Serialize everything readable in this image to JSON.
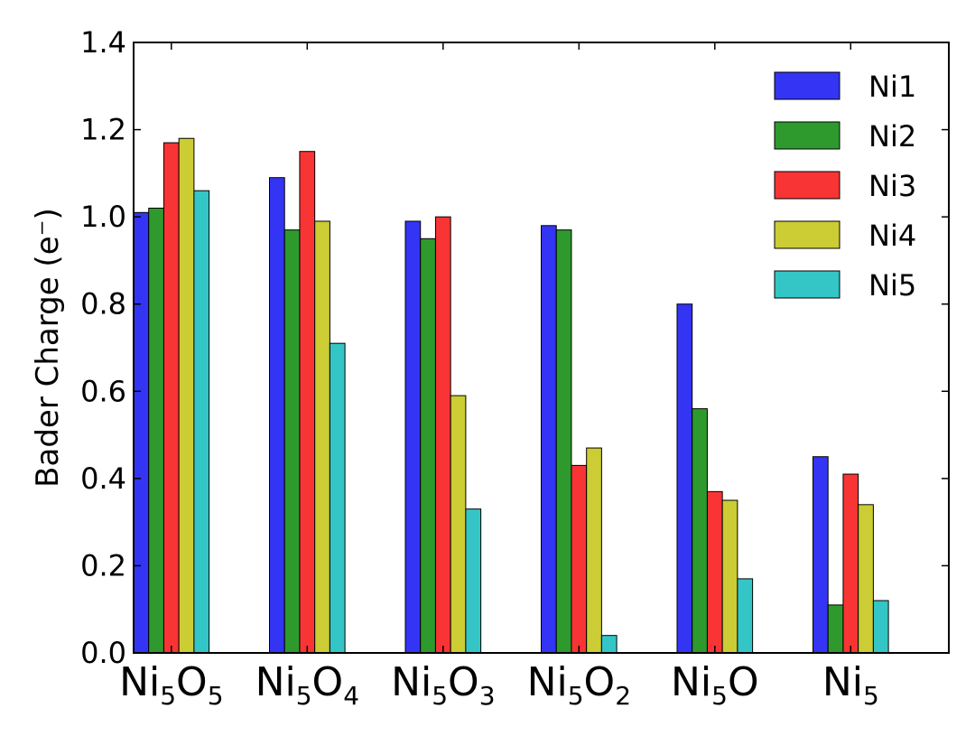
{
  "chart_data": {
    "type": "bar",
    "ylabel": "Bader Charge (e⁻)",
    "ylim": [
      0,
      1.4
    ],
    "yticks": [
      "0.0",
      "0.2",
      "0.4",
      "0.6",
      "0.8",
      "1.0",
      "1.2",
      "1.4"
    ],
    "categories": [
      {
        "main": "Ni",
        "sub1": "5",
        "mid": "O",
        "sub2": "5"
      },
      {
        "main": "Ni",
        "sub1": "5",
        "mid": "O",
        "sub2": "4"
      },
      {
        "main": "Ni",
        "sub1": "5",
        "mid": "O",
        "sub2": "3"
      },
      {
        "main": "Ni",
        "sub1": "5",
        "mid": "O",
        "sub2": "2"
      },
      {
        "main": "Ni",
        "sub1": "5",
        "mid": "O",
        "sub2": ""
      },
      {
        "main": "Ni",
        "sub1": "5",
        "mid": "",
        "sub2": ""
      }
    ],
    "category_names": [
      "Ni5O5",
      "Ni5O4",
      "Ni5O3",
      "Ni5O2",
      "Ni5O",
      "Ni5"
    ],
    "series": [
      {
        "name": "Ni1",
        "color": "#3434f4",
        "values": [
          1.01,
          1.09,
          0.99,
          0.98,
          0.8,
          0.45
        ]
      },
      {
        "name": "Ni2",
        "color": "#2e9a2e",
        "values": [
          1.02,
          0.97,
          0.95,
          0.97,
          0.56,
          0.11
        ]
      },
      {
        "name": "Ni3",
        "color": "#f83434",
        "values": [
          1.17,
          1.15,
          1.0,
          0.43,
          0.37,
          0.41
        ]
      },
      {
        "name": "Ni4",
        "color": "#cccc34",
        "values": [
          1.18,
          0.99,
          0.59,
          0.47,
          0.35,
          0.34
        ]
      },
      {
        "name": "Ni5",
        "color": "#34c6c6",
        "values": [
          1.06,
          0.71,
          0.33,
          0.04,
          0.17,
          0.12
        ]
      }
    ],
    "grid": false,
    "legend_position": "top-right"
  }
}
